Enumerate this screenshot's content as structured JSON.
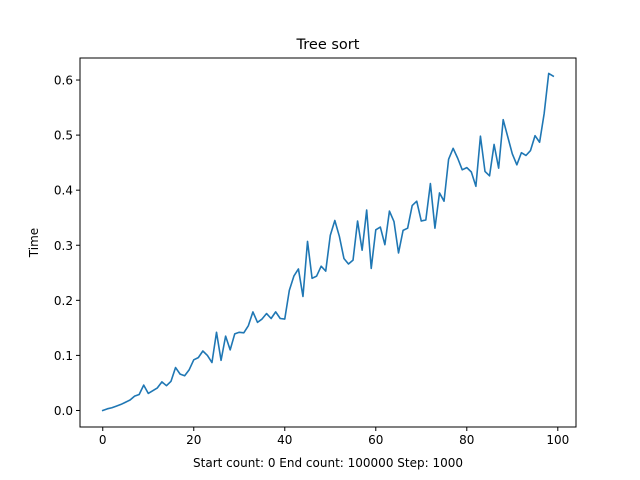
{
  "chart_data": {
    "type": "line",
    "title": "Tree sort",
    "xlabel": "Start count: 0 End count: 100000 Step: 1000",
    "ylabel": "Time",
    "xlim": [
      -5,
      104
    ],
    "ylim": [
      -0.03,
      0.64
    ],
    "xticks": [
      0,
      20,
      40,
      60,
      80,
      100
    ],
    "yticks": [
      0.0,
      0.1,
      0.2,
      0.3,
      0.4,
      0.5,
      0.6
    ],
    "grid": false,
    "series": [
      {
        "color": "#1f77b4",
        "x": [
          0,
          1,
          2,
          3,
          4,
          5,
          6,
          7,
          8,
          9,
          10,
          11,
          12,
          13,
          14,
          15,
          16,
          17,
          18,
          19,
          20,
          21,
          22,
          23,
          24,
          25,
          26,
          27,
          28,
          29,
          30,
          31,
          32,
          33,
          34,
          35,
          36,
          37,
          38,
          39,
          40,
          41,
          42,
          43,
          44,
          45,
          46,
          47,
          48,
          49,
          50,
          51,
          52,
          53,
          54,
          55,
          56,
          57,
          58,
          59,
          60,
          61,
          62,
          63,
          64,
          65,
          66,
          67,
          68,
          69,
          70,
          71,
          72,
          73,
          74,
          75,
          76,
          77,
          78,
          79,
          80,
          81,
          82,
          83,
          84,
          85,
          86,
          87,
          88,
          89,
          90,
          91,
          92,
          93,
          94,
          95,
          96,
          97,
          98,
          99
        ],
        "values": [
          0.0,
          0.003,
          0.005,
          0.008,
          0.011,
          0.015,
          0.019,
          0.026,
          0.029,
          0.046,
          0.031,
          0.036,
          0.041,
          0.052,
          0.045,
          0.053,
          0.078,
          0.066,
          0.063,
          0.074,
          0.092,
          0.096,
          0.108,
          0.1,
          0.087,
          0.142,
          0.091,
          0.135,
          0.11,
          0.139,
          0.142,
          0.141,
          0.154,
          0.179,
          0.16,
          0.166,
          0.176,
          0.167,
          0.179,
          0.167,
          0.166,
          0.218,
          0.244,
          0.257,
          0.207,
          0.307,
          0.24,
          0.244,
          0.262,
          0.253,
          0.318,
          0.345,
          0.316,
          0.276,
          0.266,
          0.273,
          0.344,
          0.291,
          0.364,
          0.258,
          0.328,
          0.333,
          0.301,
          0.362,
          0.343,
          0.286,
          0.327,
          0.331,
          0.372,
          0.38,
          0.344,
          0.346,
          0.412,
          0.331,
          0.395,
          0.38,
          0.456,
          0.476,
          0.458,
          0.437,
          0.441,
          0.433,
          0.407,
          0.498,
          0.434,
          0.426,
          0.483,
          0.44,
          0.528,
          0.497,
          0.466,
          0.446,
          0.468,
          0.463,
          0.472,
          0.499,
          0.487,
          0.539,
          0.612,
          0.607
        ]
      }
    ]
  }
}
